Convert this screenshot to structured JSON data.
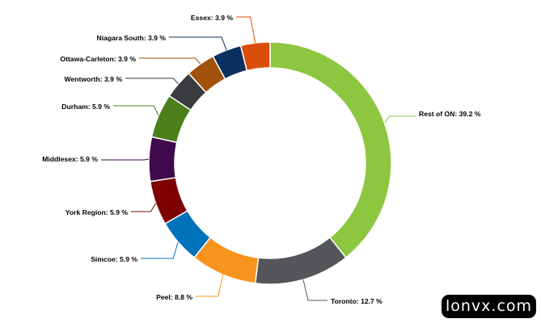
{
  "chart_data": {
    "type": "pie",
    "variant": "donut",
    "title": "",
    "slices": [
      {
        "label": "Rest of ON",
        "value": 39.2,
        "display": "Rest of ON: 39.2 %",
        "color": "#8DC63F"
      },
      {
        "label": "Toronto",
        "value": 12.7,
        "display": "Toronto: 12.7 %",
        "color": "#55565A"
      },
      {
        "label": "Peel",
        "value": 8.8,
        "display": "Peel: 8.8 %",
        "color": "#F7941D"
      },
      {
        "label": "Simcoe",
        "value": 5.9,
        "display": "Simcoe: 5.9 %",
        "color": "#0072BC"
      },
      {
        "label": "York Region",
        "value": 5.9,
        "display": "York Region: 5.9 %",
        "color": "#7F0000"
      },
      {
        "label": "Middlesex",
        "value": 5.9,
        "display": "Middlesex: 5.9 %",
        "color": "#3E0A4B"
      },
      {
        "label": "Durham",
        "value": 5.9,
        "display": "Durham: 5.9 %",
        "color": "#4C7F1A"
      },
      {
        "label": "Wentworth",
        "value": 3.9,
        "display": "Wentworth: 3.9 %",
        "color": "#3A3B3F"
      },
      {
        "label": "Ottawa-Carleton",
        "value": 3.9,
        "display": "Ottawa-Carleton: 3.9 %",
        "color": "#A0520B"
      },
      {
        "label": "Niagara South",
        "value": 3.9,
        "display": "Niagara South: 3.9 %",
        "color": "#0B2F5E"
      },
      {
        "label": "Essex",
        "value": 3.9,
        "display": "Essex: 3.9 %",
        "color": "#D94F0A"
      }
    ]
  },
  "watermark": "lonvx.com"
}
